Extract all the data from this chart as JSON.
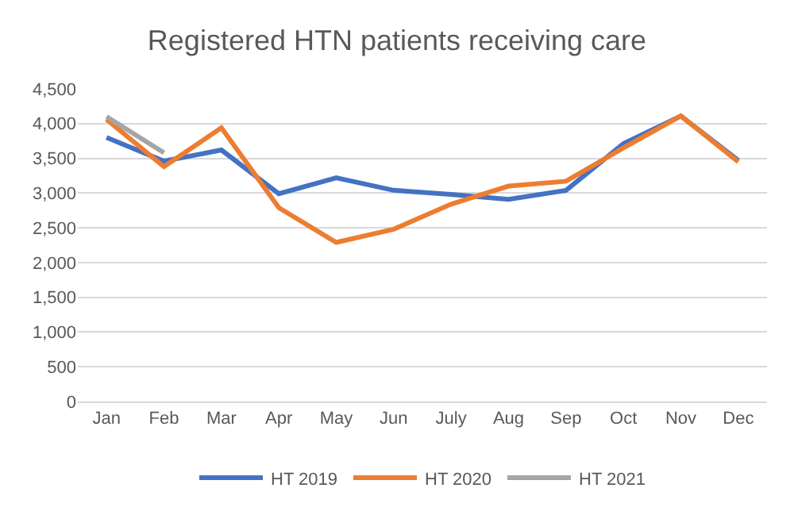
{
  "chart_data": {
    "type": "line",
    "title": "Registered HTN patients receiving care",
    "categories": [
      "Jan",
      "Feb",
      "Mar",
      "Apr",
      "May",
      "Jun",
      "July",
      "Aug",
      "Sep",
      "Oct",
      "Nov",
      "Dec"
    ],
    "series": [
      {
        "name": "HT 2019",
        "color": "#4472c4",
        "values": [
          3800,
          3460,
          3620,
          2990,
          3220,
          3040,
          2980,
          2910,
          3040,
          3710,
          4110,
          3470
        ]
      },
      {
        "name": "HT 2020",
        "color": "#ed7d31",
        "values": [
          4060,
          3380,
          3940,
          2790,
          2290,
          2480,
          2840,
          3100,
          3170,
          3650,
          4110,
          3450
        ]
      },
      {
        "name": "HT 2021",
        "color": "#a5a5a5",
        "values": [
          4100,
          3580,
          null,
          null,
          null,
          null,
          null,
          null,
          null,
          null,
          null,
          null
        ]
      }
    ],
    "ylim": [
      0,
      4500
    ],
    "yticks": [
      0,
      500,
      {
        "value": 1000,
        "label": "1,000"
      },
      {
        "value": 1500,
        "label": "1,500"
      },
      {
        "value": 2000,
        "label": "2,000"
      },
      {
        "value": 2500,
        "label": "2,500"
      },
      {
        "value": 3000,
        "label": "3,000"
      },
      {
        "value": 3500,
        "label": "3,500"
      },
      {
        "value": 4000,
        "label": "4,000"
      },
      {
        "value": 4500,
        "label": "4,500"
      }
    ],
    "grid": "y",
    "legend": "bottom",
    "line_style": "solid"
  }
}
